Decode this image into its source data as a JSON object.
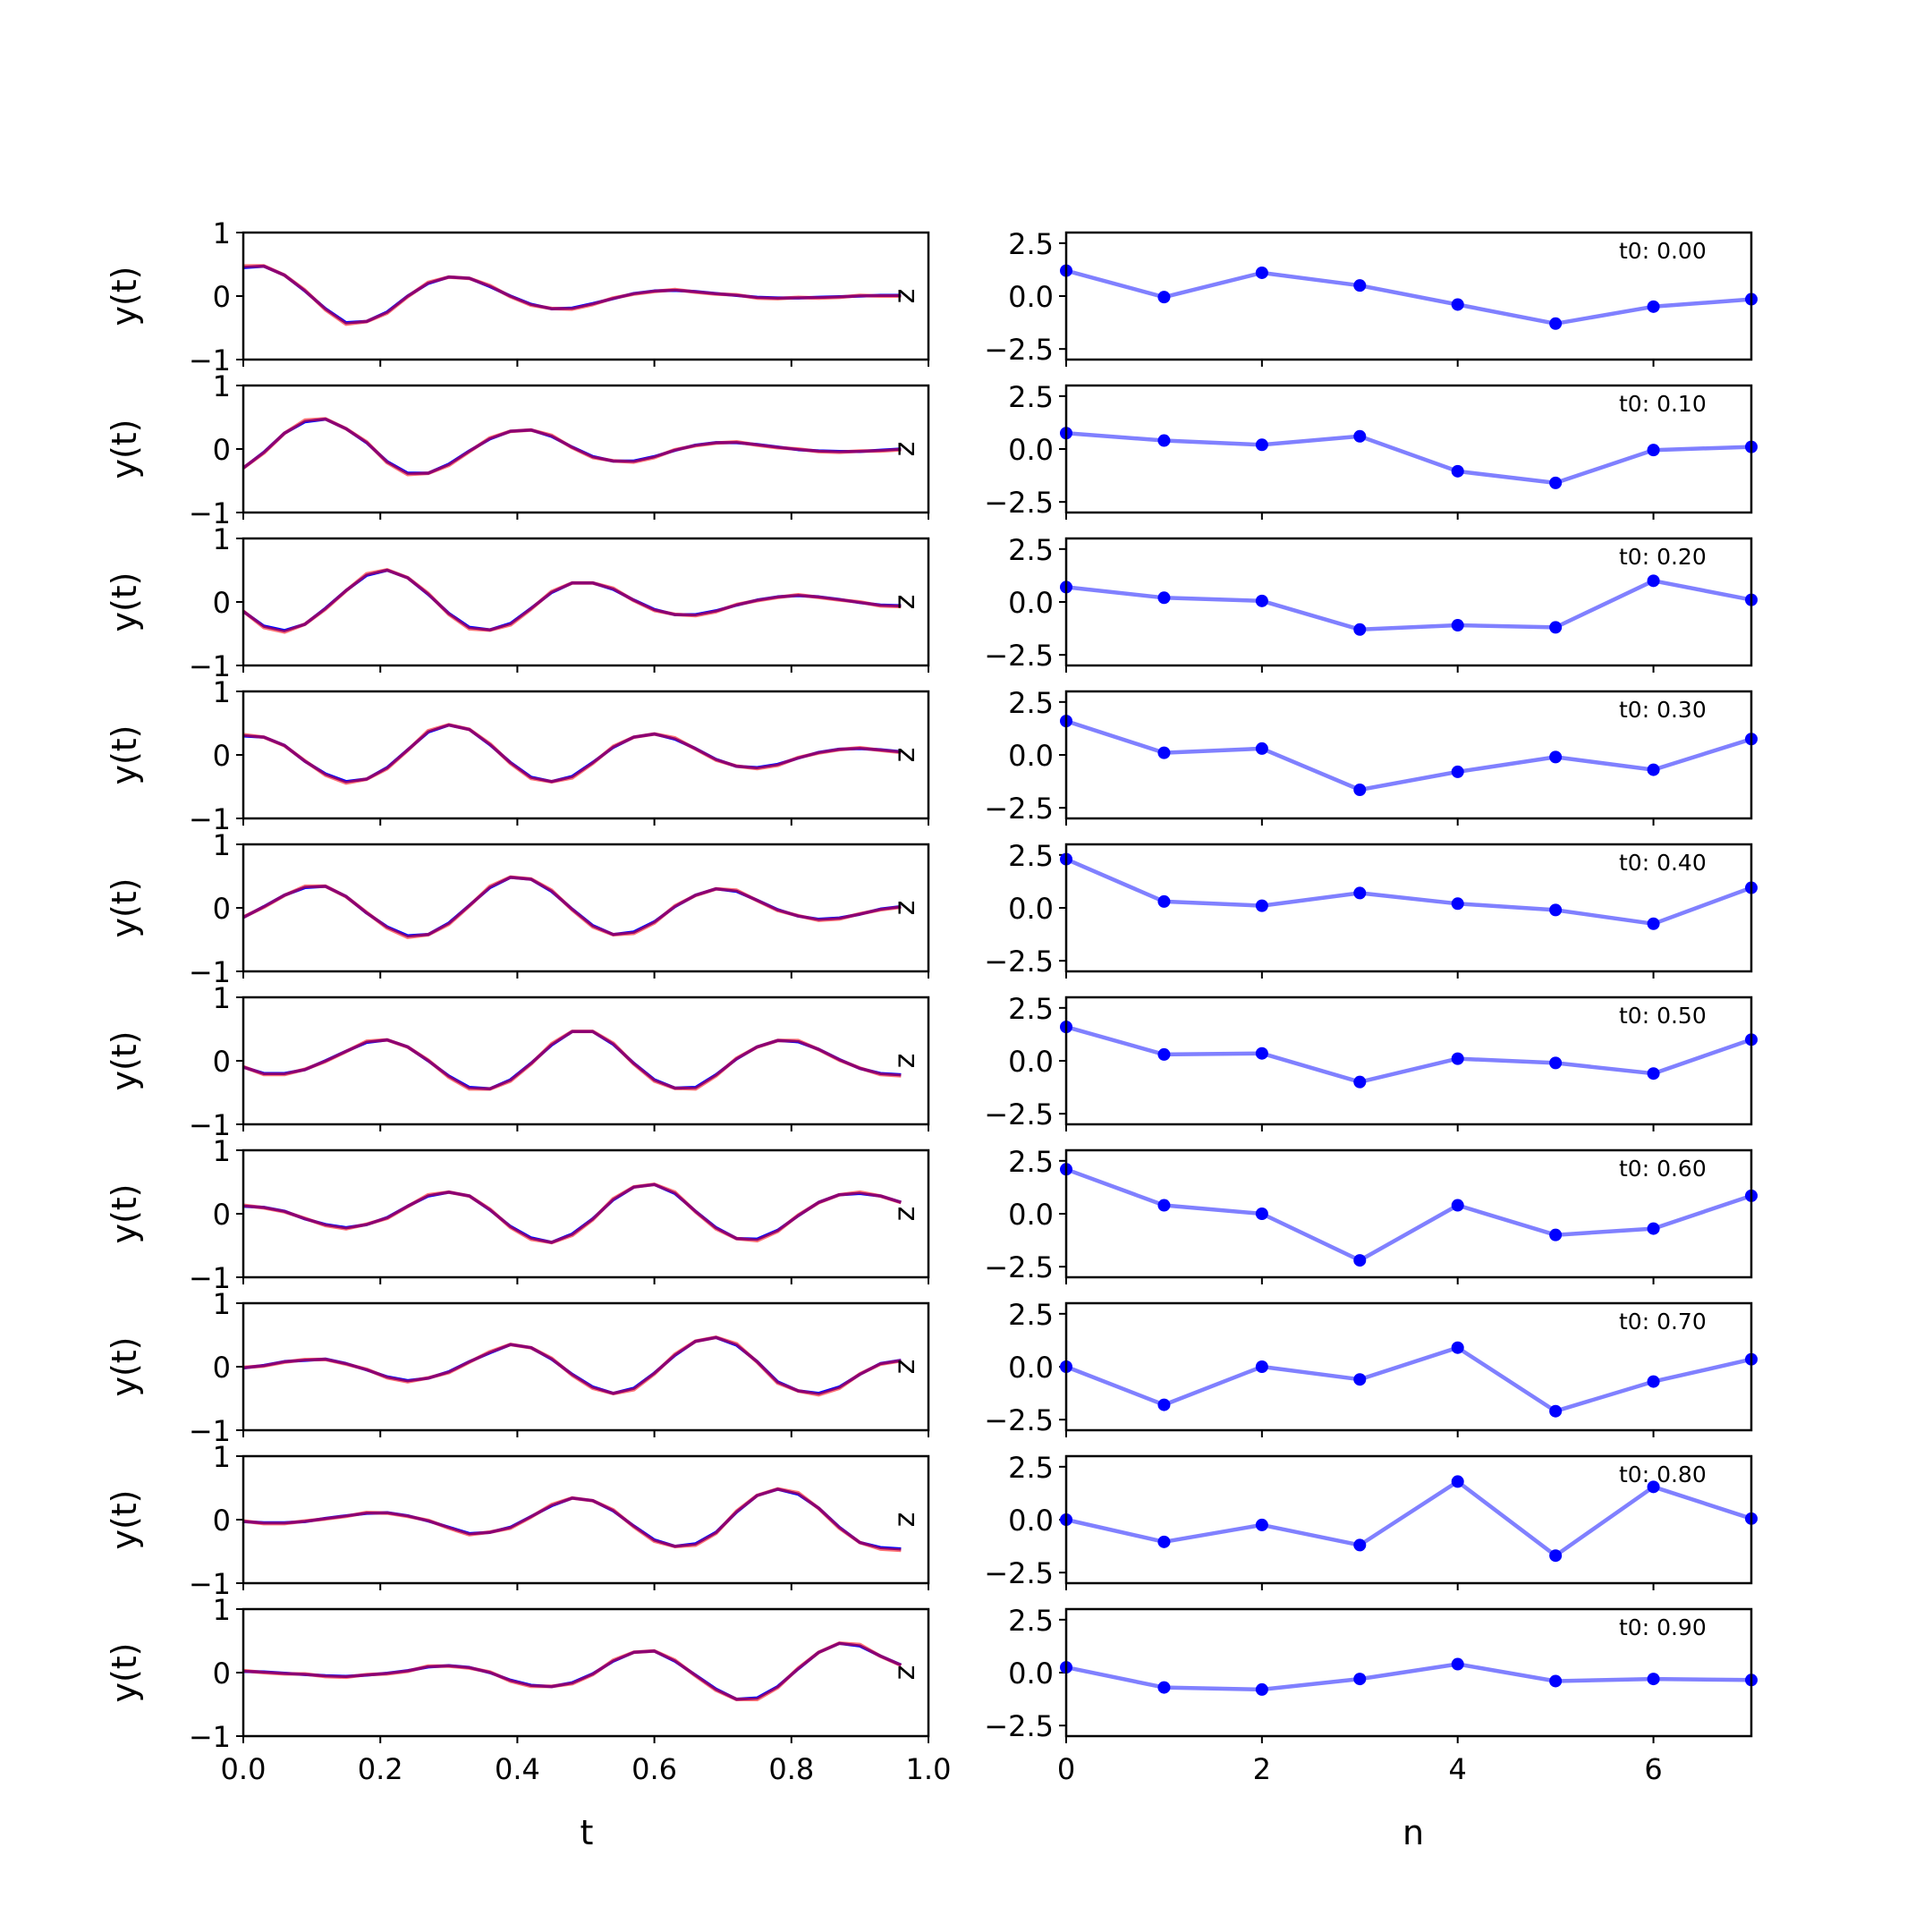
{
  "colors": {
    "true_line": "#0000ff",
    "pred_line": "#ff0000",
    "overlap": "#7a0a80",
    "latent_line": "#8080ff",
    "latent_point": "#0000ff"
  },
  "labels": {
    "left_ylabel": "y(t)",
    "left_xlabel": "t",
    "right_xlabel": "n",
    "panel_stray_label": "z",
    "left_yticks": [
      "1",
      "0",
      "−1"
    ],
    "right_yticks": [
      "2.5",
      "0.0",
      "−2.5"
    ],
    "left_xticks": [
      "0.0",
      "0.2",
      "0.4",
      "0.6",
      "0.8",
      "1.0"
    ],
    "right_xticks": [
      "0",
      "2",
      "4",
      "6"
    ]
  },
  "chart_data": [
    {
      "type": "line",
      "panel": "left",
      "xlabel": "t",
      "ylabel": "y(t)",
      "xlim": [
        0,
        1
      ],
      "ylim": [
        -1,
        1
      ],
      "x": [
        0.0,
        0.03,
        0.06,
        0.09,
        0.12,
        0.15,
        0.18,
        0.21,
        0.24,
        0.27,
        0.3,
        0.33,
        0.36,
        0.39,
        0.42,
        0.45,
        0.48,
        0.51,
        0.54,
        0.57,
        0.6,
        0.63,
        0.66,
        0.69,
        0.72,
        0.75,
        0.78,
        0.81,
        0.84,
        0.87,
        0.9,
        0.93,
        0.96
      ],
      "series_note": "two overlapping curves (blue and red) per row; red curve nearly identical to blue",
      "rows": [
        [
          0.45,
          0.47,
          0.33,
          0.08,
          -0.2,
          -0.42,
          -0.4,
          -0.25,
          0.0,
          0.2,
          0.3,
          0.28,
          0.15,
          0.0,
          -0.13,
          -0.2,
          -0.19,
          -0.12,
          -0.04,
          0.04,
          0.08,
          0.09,
          0.07,
          0.04,
          0.01,
          -0.02,
          -0.03,
          -0.03,
          -0.02,
          -0.01,
          0.0,
          0.01,
          0.01
        ],
        [
          -0.3,
          -0.05,
          0.25,
          0.43,
          0.47,
          0.32,
          0.1,
          -0.2,
          -0.38,
          -0.38,
          -0.24,
          -0.03,
          0.16,
          0.28,
          0.3,
          0.2,
          0.03,
          -0.12,
          -0.19,
          -0.19,
          -0.12,
          -0.02,
          0.06,
          0.1,
          0.1,
          0.07,
          0.03,
          -0.01,
          -0.03,
          -0.04,
          -0.04,
          -0.02,
          0.0
        ],
        [
          -0.15,
          -0.38,
          -0.45,
          -0.35,
          -0.1,
          0.18,
          0.42,
          0.5,
          0.38,
          0.12,
          -0.18,
          -0.4,
          -0.44,
          -0.34,
          -0.1,
          0.15,
          0.3,
          0.3,
          0.2,
          0.03,
          -0.12,
          -0.2,
          -0.2,
          -0.14,
          -0.05,
          0.03,
          0.08,
          0.1,
          0.08,
          0.04,
          -0.01,
          -0.05,
          -0.06
        ],
        [
          0.3,
          0.28,
          0.15,
          -0.1,
          -0.3,
          -0.42,
          -0.38,
          -0.2,
          0.08,
          0.36,
          0.47,
          0.4,
          0.16,
          -0.12,
          -0.35,
          -0.42,
          -0.34,
          -0.12,
          0.12,
          0.28,
          0.33,
          0.25,
          0.1,
          -0.07,
          -0.18,
          -0.2,
          -0.15,
          -0.05,
          0.04,
          0.09,
          0.1,
          0.08,
          0.05
        ],
        [
          -0.15,
          0.02,
          0.2,
          0.32,
          0.34,
          0.18,
          -0.08,
          -0.3,
          -0.44,
          -0.42,
          -0.24,
          0.04,
          0.32,
          0.48,
          0.45,
          0.26,
          -0.02,
          -0.28,
          -0.42,
          -0.38,
          -0.22,
          0.02,
          0.2,
          0.3,
          0.26,
          0.12,
          -0.03,
          -0.13,
          -0.18,
          -0.16,
          -0.1,
          -0.02,
          0.02
        ],
        [
          -0.1,
          -0.2,
          -0.2,
          -0.14,
          0.0,
          0.15,
          0.29,
          0.33,
          0.22,
          0.0,
          -0.24,
          -0.42,
          -0.44,
          -0.3,
          -0.04,
          0.25,
          0.46,
          0.46,
          0.26,
          -0.04,
          -0.3,
          -0.43,
          -0.42,
          -0.22,
          0.03,
          0.22,
          0.32,
          0.3,
          0.18,
          0.02,
          -0.12,
          -0.2,
          -0.22
        ],
        [
          0.12,
          0.1,
          0.04,
          -0.08,
          -0.17,
          -0.22,
          -0.17,
          -0.06,
          0.12,
          0.28,
          0.34,
          0.28,
          0.06,
          -0.2,
          -0.38,
          -0.45,
          -0.32,
          -0.08,
          0.22,
          0.42,
          0.46,
          0.32,
          0.04,
          -0.22,
          -0.39,
          -0.4,
          -0.26,
          -0.03,
          0.18,
          0.3,
          0.32,
          0.28,
          0.18
        ],
        [
          -0.02,
          0.02,
          0.08,
          0.1,
          0.12,
          0.05,
          -0.05,
          -0.16,
          -0.22,
          -0.18,
          -0.08,
          0.08,
          0.22,
          0.35,
          0.3,
          0.12,
          -0.12,
          -0.32,
          -0.42,
          -0.34,
          -0.1,
          0.18,
          0.4,
          0.46,
          0.34,
          0.08,
          -0.24,
          -0.38,
          -0.42,
          -0.32,
          -0.12,
          0.05,
          0.1
        ],
        [
          -0.03,
          -0.05,
          -0.05,
          -0.03,
          0.02,
          0.06,
          0.1,
          0.11,
          0.06,
          -0.02,
          -0.12,
          -0.22,
          -0.2,
          -0.12,
          0.05,
          0.22,
          0.34,
          0.3,
          0.14,
          -0.1,
          -0.32,
          -0.42,
          -0.38,
          -0.2,
          0.12,
          0.38,
          0.48,
          0.4,
          0.18,
          -0.12,
          -0.36,
          -0.44,
          -0.46
        ],
        [
          0.02,
          0.01,
          -0.01,
          -0.03,
          -0.05,
          -0.06,
          -0.04,
          -0.01,
          0.03,
          0.09,
          0.11,
          0.08,
          0.0,
          -0.12,
          -0.2,
          -0.22,
          -0.16,
          -0.02,
          0.18,
          0.32,
          0.34,
          0.18,
          -0.04,
          -0.26,
          -0.42,
          -0.4,
          -0.22,
          0.06,
          0.32,
          0.46,
          0.42,
          0.26,
          0.12
        ]
      ]
    },
    {
      "type": "line",
      "panel": "right",
      "xlabel": "n",
      "xlim": [
        0,
        7
      ],
      "ylim": [
        -3,
        3
      ],
      "x": [
        0,
        1,
        2,
        3,
        4,
        5,
        6,
        7
      ],
      "rows": [
        {
          "annotation": "t0: 0.00",
          "values": [
            1.2,
            -0.05,
            1.1,
            0.5,
            -0.4,
            -1.3,
            -0.5,
            -0.15
          ]
        },
        {
          "annotation": "t0: 0.10",
          "values": [
            0.75,
            0.4,
            0.2,
            0.6,
            -1.05,
            -1.6,
            -0.05,
            0.1
          ]
        },
        {
          "annotation": "t0: 0.20",
          "values": [
            0.7,
            0.2,
            0.05,
            -1.3,
            -1.1,
            -1.2,
            1.0,
            0.1
          ]
        },
        {
          "annotation": "t0: 0.30",
          "values": [
            1.6,
            0.1,
            0.3,
            -1.65,
            -0.8,
            -0.1,
            -0.7,
            0.75
          ]
        },
        {
          "annotation": "t0: 0.40",
          "values": [
            2.3,
            0.3,
            0.1,
            0.7,
            0.2,
            -0.1,
            -0.75,
            0.95
          ]
        },
        {
          "annotation": "t0: 0.50",
          "values": [
            1.6,
            0.3,
            0.35,
            -1.0,
            0.1,
            -0.1,
            -0.6,
            1.0
          ]
        },
        {
          "annotation": "t0: 0.60",
          "values": [
            2.1,
            0.4,
            0.0,
            -2.2,
            0.4,
            -1.0,
            -0.7,
            0.85
          ]
        },
        {
          "annotation": "t0: 0.70",
          "values": [
            0.0,
            -1.8,
            0.0,
            -0.6,
            0.9,
            -2.1,
            -0.7,
            0.35
          ]
        },
        {
          "annotation": "t0: 0.80",
          "values": [
            0.0,
            -1.05,
            -0.25,
            -1.2,
            1.8,
            -1.7,
            1.55,
            0.05
          ]
        },
        {
          "annotation": "t0: 0.90",
          "values": [
            0.25,
            -0.7,
            -0.8,
            -0.3,
            0.4,
            -0.4,
            -0.3,
            -0.35
          ]
        }
      ]
    }
  ]
}
